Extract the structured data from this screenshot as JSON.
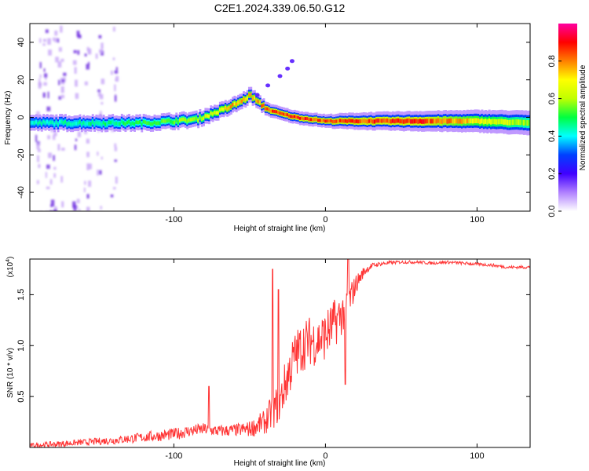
{
  "chart_data": [
    {
      "type": "heatmap",
      "title": "C2E1.2024.339.06.50.G12",
      "xlabel": "Height of straight line (km)",
      "ylabel": "Frequency (Hz)",
      "xlim": [
        -195,
        135
      ],
      "ylim": [
        -50,
        50
      ],
      "xticks": [
        -100,
        0,
        100
      ],
      "yticks": [
        -40,
        -20,
        0,
        20,
        40
      ],
      "grid": false,
      "colorbar": {
        "label": "Normalized spectral amplitude",
        "range": [
          0,
          1
        ],
        "ticks": [
          "0.0",
          "0.2",
          "0.4",
          "0.6",
          "0.8"
        ],
        "colormap": [
          "#ffffff",
          "#b080ff",
          "#4000ff",
          "#0040ff",
          "#00ffff",
          "#00ff40",
          "#c0ff00",
          "#ffff00",
          "#ff8000",
          "#ff0000",
          "#ff00a0"
        ]
      },
      "ridge": {
        "x": [
          -195,
          -150,
          -120,
          -100,
          -85,
          -75,
          -65,
          -55,
          -50,
          -45,
          -38,
          -30,
          -20,
          -10,
          0,
          10,
          30,
          60,
          100,
          135
        ],
        "frequency_hz": [
          -3,
          -3,
          -3,
          -2,
          -1,
          2,
          5,
          9,
          12,
          8,
          4,
          2,
          0,
          -1,
          -2,
          -2,
          -2,
          -2,
          -2,
          -3
        ],
        "peak_amplitude": [
          0.45,
          0.5,
          0.55,
          0.6,
          0.65,
          0.7,
          0.8,
          0.85,
          0.8,
          0.85,
          0.9,
          0.9,
          0.95,
          0.9,
          0.9,
          0.9,
          0.92,
          0.95,
          0.75,
          0.6
        ],
        "width_hz": [
          3.5,
          3.5,
          3.5,
          3.5,
          3.5,
          3.5,
          3.5,
          3.5,
          3.5,
          3.2,
          3,
          3,
          3,
          3,
          3,
          3.5,
          4,
          4.5,
          5,
          5.5
        ]
      },
      "drift_branch": {
        "x": [
          -45,
          -38,
          -30,
          -25,
          -22
        ],
        "frequency_hz": [
          12,
          17,
          22,
          26,
          30
        ]
      },
      "noise_columns_x": [
        -190,
        -185,
        -180,
        -175,
        -165,
        -158,
        -150,
        -140
      ]
    },
    {
      "type": "line",
      "xlabel": "Height of straight line (km)",
      "ylabel": "SNR (10 * v/v)",
      "y_scale_label": "(x10",
      "y_scale_exponent": "4",
      "xlim": [
        -195,
        135
      ],
      "ylim": [
        0,
        1.85
      ],
      "xticks": [
        -100,
        0,
        100
      ],
      "yticks": [
        "0.5",
        "1.0",
        "1.5"
      ],
      "grid": false,
      "color": "#ff3333",
      "series": [
        {
          "x": [
            -195,
            -180,
            -160,
            -140,
            -120,
            -100,
            -90,
            -80,
            -70,
            -60,
            -50,
            -40,
            -35,
            -30,
            -25,
            -20,
            -15,
            -10,
            -5,
            0,
            5,
            10,
            15,
            20,
            25,
            30,
            35,
            40,
            50,
            60,
            70,
            80,
            90,
            100,
            110,
            120,
            135
          ],
          "values": [
            0.02,
            0.03,
            0.05,
            0.07,
            0.1,
            0.13,
            0.16,
            0.18,
            0.16,
            0.17,
            0.18,
            0.25,
            0.35,
            0.45,
            0.7,
            0.9,
            1.0,
            1.05,
            1.05,
            1.1,
            1.2,
            1.3,
            1.4,
            1.6,
            1.72,
            1.78,
            1.8,
            1.81,
            1.82,
            1.82,
            1.81,
            1.82,
            1.81,
            1.8,
            1.79,
            1.77,
            1.77
          ],
          "noise": [
            0.02,
            0.03,
            0.03,
            0.04,
            0.05,
            0.06,
            0.06,
            0.06,
            0.06,
            0.06,
            0.08,
            0.12,
            0.18,
            0.2,
            0.25,
            0.25,
            0.25,
            0.25,
            0.25,
            0.25,
            0.25,
            0.22,
            0.2,
            0.1,
            0.05,
            0.03,
            0.02,
            0.02,
            0.015,
            0.015,
            0.015,
            0.015,
            0.015,
            0.015,
            0.015,
            0.015,
            0.015
          ]
        }
      ],
      "peaks": [
        {
          "x": -35,
          "y": 1.75
        },
        {
          "x": -31,
          "y": 1.55
        },
        {
          "x": 15,
          "y": 1.86
        },
        {
          "x": 13,
          "y": 0.62
        },
        {
          "x": -77,
          "y": 0.6
        }
      ]
    }
  ]
}
